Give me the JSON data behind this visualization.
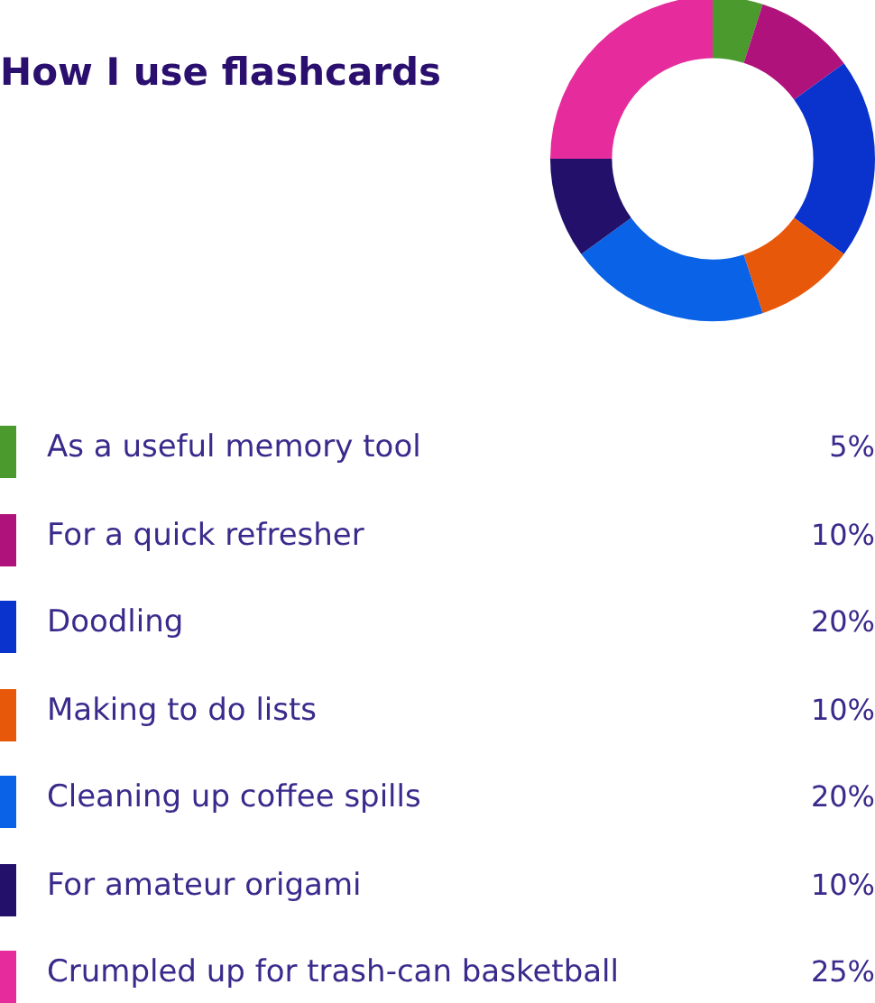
{
  "chart_data": {
    "type": "donut",
    "title": "How I use flashcards",
    "categories": [
      "As a useful memory tool",
      "For a quick refresher",
      "Doodling",
      "Making to do lists",
      "Cleaning up coffee spills",
      "For amateur origami",
      "Crumpled up for trash-can basketball"
    ],
    "values": [
      5,
      10,
      20,
      10,
      20,
      10,
      25
    ],
    "colors": [
      "#4a9a2e",
      "#b0127c",
      "#0a32cc",
      "#e8580a",
      "#0a62e6",
      "#22106a",
      "#e62c9c"
    ],
    "value_labels": [
      "5%",
      "10%",
      "20%",
      "10%",
      "20%",
      "10%",
      "25%"
    ],
    "legend": "bottom"
  }
}
